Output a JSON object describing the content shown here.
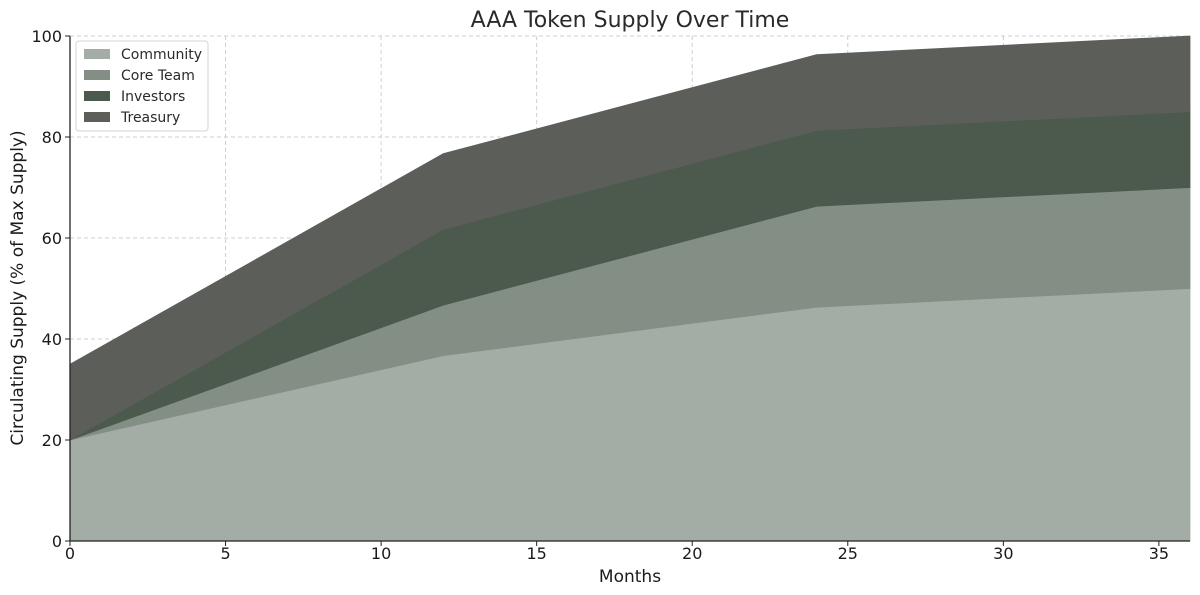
{
  "chart_data": {
    "type": "area",
    "stacked": true,
    "title": "AAA Token Supply Over Time",
    "xlabel": "Months",
    "ylabel": "Circulating Supply (% of Max Supply)",
    "xlim": [
      0,
      36
    ],
    "ylim": [
      0,
      100
    ],
    "xticks": [
      0,
      5,
      10,
      15,
      20,
      25,
      30,
      35
    ],
    "yticks": [
      0,
      20,
      40,
      60,
      80,
      100
    ],
    "grid": true,
    "legend_position": "top-left",
    "x": [
      0,
      12,
      24,
      36
    ],
    "series": [
      {
        "name": "Community",
        "color": "#a4ada5",
        "values": [
          20,
          36.7,
          46.3,
          50
        ]
      },
      {
        "name": "Core Team",
        "color": "#838f84",
        "values": [
          0,
          10,
          20,
          20
        ]
      },
      {
        "name": "Investors",
        "color": "#4b5a4c",
        "values": [
          0,
          15,
          15,
          15
        ]
      },
      {
        "name": "Treasury",
        "color": "#5c5e5a",
        "values": [
          15,
          15,
          15,
          15
        ]
      }
    ]
  }
}
